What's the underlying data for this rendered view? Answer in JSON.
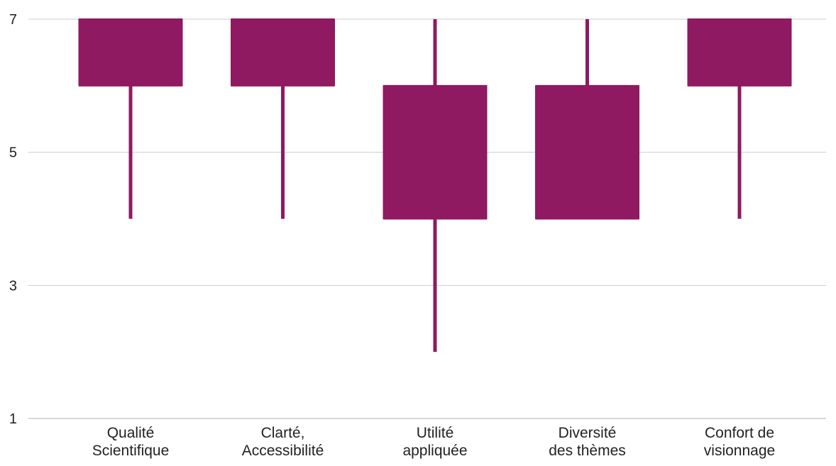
{
  "chart_data": {
    "type": "candlestick",
    "ylim": [
      1,
      7
    ],
    "yticks": [
      "1",
      "3",
      "5",
      "7"
    ],
    "grid": true,
    "colors": {
      "box": "#8f1a61",
      "grid": "#cccccc",
      "text": "#222222"
    },
    "categories": [
      {
        "lines": [
          "Qualité",
          "Scientifique"
        ],
        "low": 4,
        "open": 6,
        "close": 7,
        "high": 7
      },
      {
        "lines": [
          "Clarté,",
          "Accessibilité"
        ],
        "low": 4,
        "open": 6,
        "close": 7,
        "high": 7
      },
      {
        "lines": [
          "Utilité",
          "appliquée"
        ],
        "low": 2,
        "open": 4,
        "close": 6,
        "high": 7
      },
      {
        "lines": [
          "Diversité",
          "des thèmes"
        ],
        "low": 4,
        "open": 4,
        "close": 6,
        "high": 7
      },
      {
        "lines": [
          "Confort de",
          "visionnage"
        ],
        "low": 4,
        "open": 6,
        "close": 7,
        "high": 7
      }
    ]
  }
}
